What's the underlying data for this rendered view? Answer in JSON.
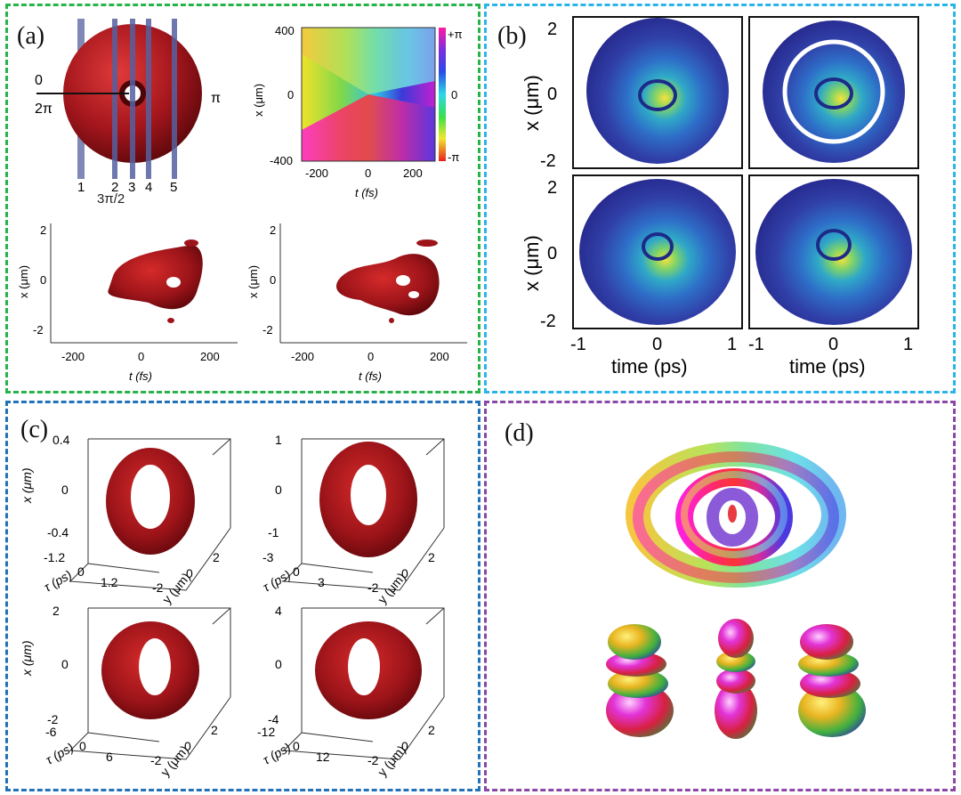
{
  "panel_a": {
    "label": "(a)",
    "torus": {
      "phase_left_top": "0",
      "phase_left_bottom": "2π",
      "phase_right": "π",
      "phase_bottom": "3π/2",
      "slices": [
        "1",
        "2",
        "3",
        "4",
        "5"
      ]
    },
    "phase_map": {
      "y_label": "x (μm)",
      "x_label": "t (fs)",
      "y_ticks": [
        "400",
        "0",
        "-400"
      ],
      "x_ticks": [
        "-200",
        "0",
        "200"
      ],
      "colorbar_ticks": [
        "+π",
        "0",
        "-π"
      ]
    },
    "iso_left": {
      "y_label": "x (μm)",
      "x_label": "t (fs)",
      "y_ticks": [
        "2",
        "0",
        "-2"
      ],
      "x_ticks": [
        "-200",
        "0",
        "200"
      ]
    },
    "iso_right": {
      "y_label": "x (μm)",
      "x_label": "t (fs)",
      "y_ticks": [
        "2",
        "0",
        "-2"
      ],
      "x_ticks": [
        "-200",
        "0",
        "200"
      ]
    }
  },
  "panel_b": {
    "label": "(b)",
    "y_label": "x (μm)",
    "x_label": "time (ps)",
    "y_ticks": [
      "2",
      "0",
      "-2"
    ],
    "x_ticks": [
      "-1",
      "0",
      "1"
    ]
  },
  "panel_c": {
    "label": "(c)",
    "plots": [
      {
        "x_label": "x (μm)",
        "y_label": "y (μm)",
        "tau_label": "τ (ps)",
        "x_ticks": [
          "0.4",
          "0",
          "-0.4"
        ],
        "tau_ticks": [
          "-1.2",
          "0",
          "1.2"
        ],
        "y_ticks": [
          "-2",
          "0",
          "2"
        ]
      },
      {
        "x_label": "x (μm)",
        "y_label": "y (μm)",
        "tau_label": "τ (ps)",
        "x_ticks": [
          "1",
          "0",
          "-1"
        ],
        "tau_ticks": [
          "-3",
          "0",
          "3"
        ],
        "y_ticks": [
          "-2",
          "0",
          "2"
        ]
      },
      {
        "x_label": "x (μm)",
        "y_label": "y (μm)",
        "tau_label": "τ (ps)",
        "x_ticks": [
          "2",
          "0",
          "-2"
        ],
        "tau_ticks": [
          "-6",
          "0",
          "6"
        ],
        "y_ticks": [
          "-2",
          "0",
          "2"
        ]
      },
      {
        "x_label": "x (μm)",
        "y_label": "y (μm)",
        "tau_label": "τ (ps)",
        "x_ticks": [
          "4",
          "0",
          "-4"
        ],
        "tau_ticks": [
          "-12",
          "0",
          "12"
        ],
        "y_ticks": [
          "-2",
          "0",
          "2"
        ]
      }
    ]
  },
  "panel_d": {
    "label": "(d)"
  },
  "colors": {
    "panel_a_border": "#27b34a",
    "panel_b_border": "#2ab5ea",
    "panel_c_border": "#2371b8",
    "panel_d_border": "#8a47a8",
    "isosurface_red": "#a3161c",
    "intensity_blue": "#2a2f9c"
  }
}
